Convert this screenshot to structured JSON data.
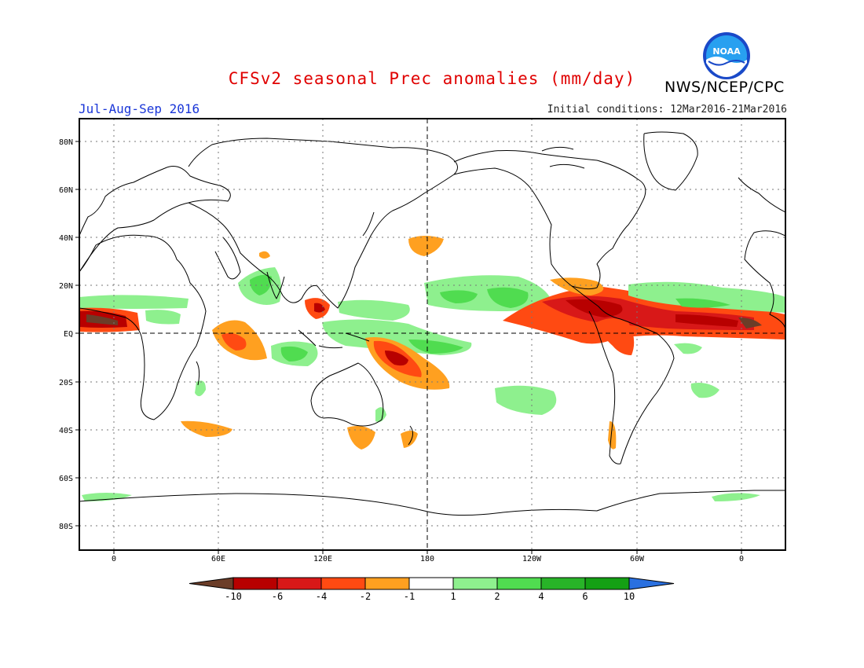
{
  "header": {
    "title": "CFSv2 seasonal Prec anomalies (mm/day)",
    "agency": "NWS/NCEP/CPC",
    "logo_text": "NOAA",
    "period": "Jul-Aug-Sep 2016",
    "initial_conditions": "Initial conditions: 12Mar2016-21Mar2016"
  },
  "map": {
    "lat_labels": [
      "80N",
      "60N",
      "40N",
      "20N",
      "EQ",
      "20S",
      "40S",
      "60S",
      "80S"
    ],
    "lon_labels": [
      "0",
      "60E",
      "120E",
      "180",
      "120W",
      "60W",
      "0"
    ]
  },
  "colorbar": {
    "labels": [
      "-10",
      "-6",
      "-4",
      "-2",
      "-1",
      "1",
      "2",
      "4",
      "6",
      "10"
    ],
    "colors": [
      "#6b3d28",
      "#b80000",
      "#d81818",
      "#ff4a12",
      "#ffa020",
      "#ffffff",
      "#8ef08e",
      "#50dc50",
      "#28b428",
      "#14a014",
      "#2a70e0"
    ]
  }
}
